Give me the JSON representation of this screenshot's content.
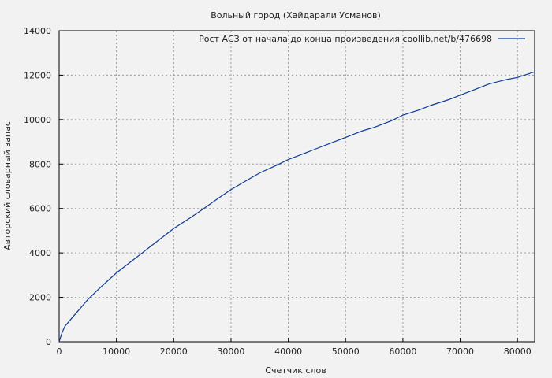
{
  "chart_data": {
    "type": "line",
    "title": "Вольный город (Хайдарали Усманов)",
    "xlabel": "Счетчик слов",
    "ylabel": "Авторский словарный запас",
    "xlim": [
      0,
      83000
    ],
    "ylim": [
      0,
      14000
    ],
    "xticks": [
      0,
      10000,
      20000,
      30000,
      40000,
      50000,
      60000,
      70000,
      80000
    ],
    "yticks": [
      0,
      2000,
      4000,
      6000,
      8000,
      10000,
      12000,
      14000
    ],
    "grid": true,
    "legend_position": "top-right",
    "series": [
      {
        "name": "Рост АСЗ от начала до конца произведения coollib.net/b/476698",
        "color": "#0b3b9a",
        "x": [
          0,
          500,
          1000,
          2000,
          3000,
          4000,
          5000,
          7000,
          10000,
          13000,
          15000,
          18000,
          20000,
          23000,
          25000,
          28000,
          30000,
          33000,
          35000,
          38000,
          40000,
          43000,
          45000,
          48000,
          50000,
          53000,
          55000,
          58000,
          60000,
          63000,
          65000,
          68000,
          70000,
          73000,
          75000,
          78000,
          80000,
          83000
        ],
        "y": [
          0,
          400,
          700,
          1000,
          1300,
          1600,
          1900,
          2400,
          3100,
          3700,
          4100,
          4700,
          5100,
          5600,
          5950,
          6500,
          6850,
          7300,
          7600,
          7950,
          8200,
          8500,
          8700,
          9000,
          9200,
          9500,
          9650,
          9950,
          10200,
          10450,
          10650,
          10900,
          11100,
          11400,
          11600,
          11800,
          11900,
          12150
        ]
      }
    ]
  }
}
